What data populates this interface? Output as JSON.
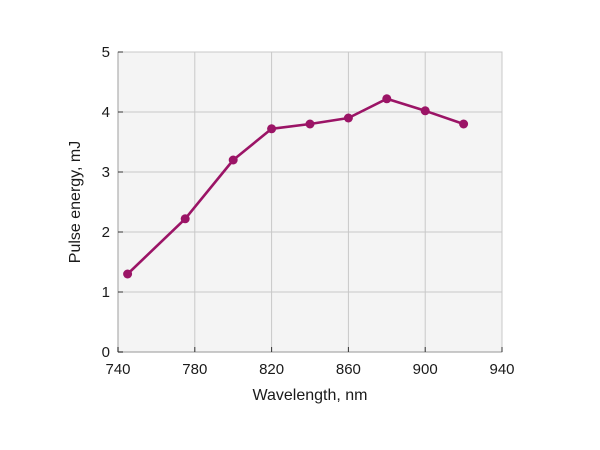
{
  "chart_data": {
    "type": "line",
    "title": "",
    "xlabel": "Wavelength, nm",
    "ylabel": "Pulse energy, mJ",
    "xlim": [
      740,
      940
    ],
    "ylim": [
      0,
      5
    ],
    "xticks": [
      740,
      780,
      820,
      860,
      900,
      940
    ],
    "yticks": [
      0,
      1,
      2,
      3,
      4,
      5
    ],
    "grid": true,
    "legend": "none",
    "series": [
      {
        "x": [
          745,
          775,
          800,
          820,
          840,
          860,
          880,
          900,
          920
        ],
        "y": [
          1.3,
          2.22,
          3.2,
          3.72,
          3.8,
          3.9,
          4.22,
          4.02,
          3.8
        ],
        "color": "#9b1466"
      }
    ],
    "colors": {
      "plot_background": "#f4f4f4",
      "grid": "#c8c8c8",
      "axis": "#333333"
    }
  }
}
